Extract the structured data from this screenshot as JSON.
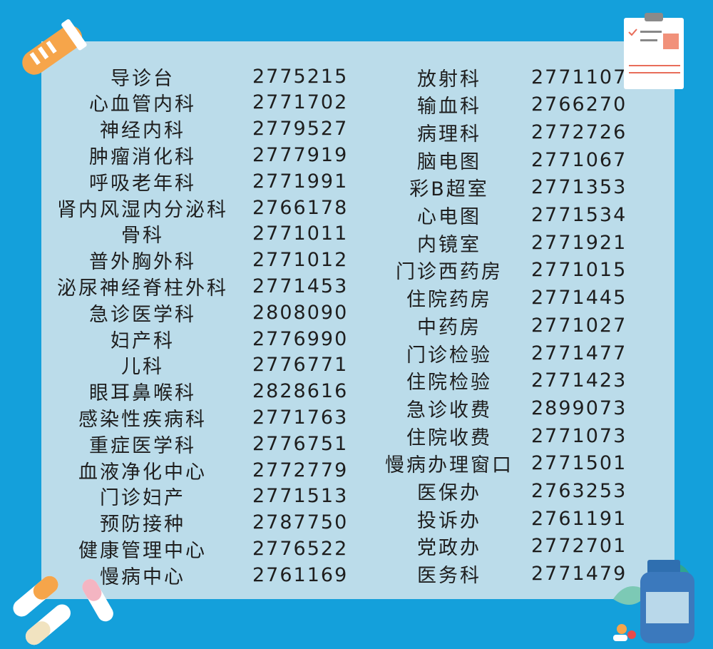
{
  "colors": {
    "background": "#14a0db",
    "panel": "#bbdcea",
    "text": "#1e1e1e"
  },
  "left": [
    {
      "name": "导诊台",
      "phone": "2775215"
    },
    {
      "name": "心血管内科",
      "phone": "2771702"
    },
    {
      "name": "神经内科",
      "phone": "2779527"
    },
    {
      "name": "肿瘤消化科",
      "phone": "2777919"
    },
    {
      "name": "呼吸老年科",
      "phone": "2771991"
    },
    {
      "name": "肾内风湿内分泌科",
      "phone": "2766178"
    },
    {
      "name": "骨科",
      "phone": "2771011"
    },
    {
      "name": "普外胸外科",
      "phone": "2771012"
    },
    {
      "name": "泌尿神经脊柱外科",
      "phone": "2771453"
    },
    {
      "name": "急诊医学科",
      "phone": "2808090"
    },
    {
      "name": "妇产科",
      "phone": "2776990"
    },
    {
      "name": "儿科",
      "phone": "2776771"
    },
    {
      "name": "眼耳鼻喉科",
      "phone": "2828616"
    },
    {
      "name": "感染性疾病科",
      "phone": "2771763"
    },
    {
      "name": "重症医学科",
      "phone": "2776751"
    },
    {
      "name": "血液净化中心",
      "phone": "2772779"
    },
    {
      "name": "门诊妇产",
      "phone": "2771513"
    },
    {
      "name": "预防接种",
      "phone": "2787750"
    },
    {
      "name": "健康管理中心",
      "phone": "2776522"
    },
    {
      "name": "慢病中心",
      "phone": "2761169"
    }
  ],
  "right": [
    {
      "name": "放射科",
      "phone": "2771107"
    },
    {
      "name": "输血科",
      "phone": "2766270"
    },
    {
      "name": "病理科",
      "phone": "2772726"
    },
    {
      "name": "脑电图",
      "phone": "2771067"
    },
    {
      "name": "彩B超室",
      "phone": "2771353"
    },
    {
      "name": "心电图",
      "phone": "2771534"
    },
    {
      "name": "内镜室",
      "phone": "2771921"
    },
    {
      "name": "门诊西药房",
      "phone": "2771015"
    },
    {
      "name": "住院药房",
      "phone": "2771445"
    },
    {
      "name": "中药房",
      "phone": "2771027"
    },
    {
      "name": "门诊检验",
      "phone": "2771477"
    },
    {
      "name": "住院检验",
      "phone": "2771423"
    },
    {
      "name": "急诊收费",
      "phone": "2899073"
    },
    {
      "name": "住院收费",
      "phone": "2771073"
    },
    {
      "name": "慢病办理窗口",
      "phone": "2771501"
    },
    {
      "name": "医保办",
      "phone": "2763253"
    },
    {
      "name": "投诉办",
      "phone": "2761191"
    },
    {
      "name": "党政办",
      "phone": "2772701"
    },
    {
      "name": "医务科",
      "phone": "2771479"
    }
  ],
  "icons": [
    "test-tube-icon",
    "clipboard-icon",
    "pill-capsules-icon",
    "medicine-bottle-icon",
    "leaf-icon"
  ]
}
